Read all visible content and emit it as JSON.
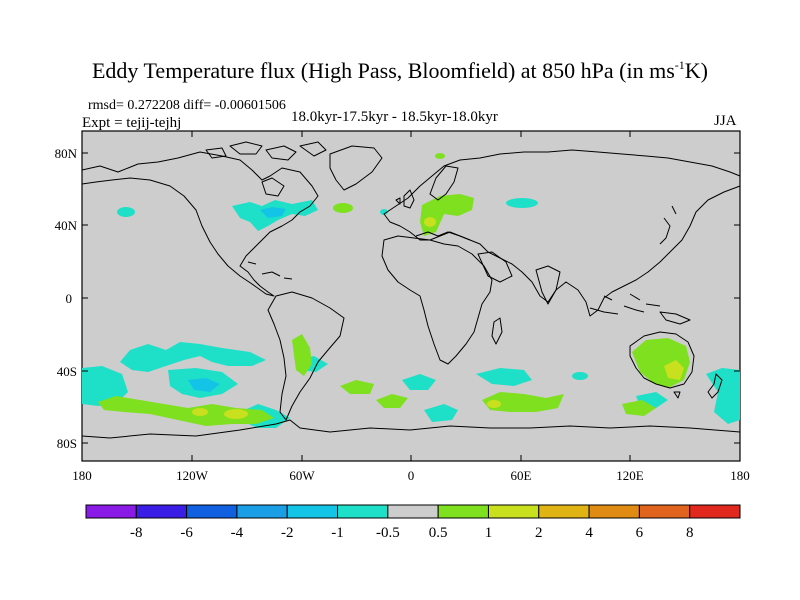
{
  "title": {
    "main": "Eddy Temperature flux (High Pass, Bloomfield) at 850 hPa (in ms",
    "sup": "-1",
    "end": "K)"
  },
  "stats": "rmsd= 0.272208 diff= -0.00601506",
  "expt": "Expt = tejij-tejhj",
  "period": "18.0kyr-17.5kyr - 18.5kyr-18.0kyr",
  "season": "JJA",
  "lat_labels": [
    "80N",
    "40N",
    "0",
    "40S",
    "80S"
  ],
  "lon_labels": [
    "180",
    "120W",
    "60W",
    "0",
    "60E",
    "120E",
    "180"
  ],
  "colorbar": {
    "labels": [
      "-8",
      "-6",
      "-4",
      "-2",
      "-1",
      "-0.5",
      "0.5",
      "1",
      "2",
      "4",
      "6",
      "8"
    ],
    "colors": [
      "#8a1ae6",
      "#3a1ee6",
      "#1060e0",
      "#1a9fe6",
      "#14c4e6",
      "#1ee0c8",
      "#cdcdcd",
      "#7ee01e",
      "#c8e01e",
      "#e0b414",
      "#e08c14",
      "#e0641e",
      "#e0281e"
    ]
  },
  "colors": {
    "land_bg": "#cdcdcd",
    "coast": "#000000"
  }
}
